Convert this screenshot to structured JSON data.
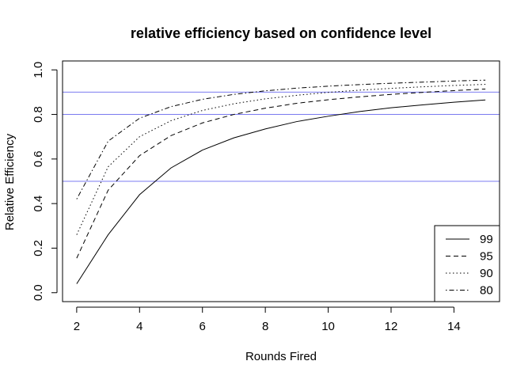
{
  "chart_data": {
    "type": "line",
    "title": "relative efficiency based on confidence level",
    "xlabel": "Rounds Fired",
    "ylabel": "Relative Efficiency",
    "xlim": [
      1.55,
      15.45
    ],
    "ylim": [
      -0.04,
      1.04
    ],
    "xticks": [
      2,
      4,
      6,
      8,
      10,
      12,
      14
    ],
    "yticks": [
      0.0,
      0.2,
      0.4,
      0.6,
      0.8,
      1.0
    ],
    "xtick_labels": [
      "2",
      "4",
      "6",
      "8",
      "10",
      "12",
      "14"
    ],
    "ytick_labels": [
      "0.0",
      "0.2",
      "0.4",
      "0.6",
      "0.8",
      "1.0"
    ],
    "grid": false,
    "legend_position": "bottom-right",
    "x": [
      2,
      3,
      4,
      5,
      6,
      7,
      8,
      9,
      10,
      11,
      12,
      13,
      14,
      15
    ],
    "series": [
      {
        "name": "99",
        "dash": "solid",
        "color": "#000000",
        "values": [
          0.04,
          0.26,
          0.44,
          0.56,
          0.64,
          0.695,
          0.735,
          0.768,
          0.792,
          0.813,
          0.83,
          0.843,
          0.855,
          0.865
        ]
      },
      {
        "name": "95",
        "dash": "dashed",
        "color": "#000000",
        "values": [
          0.155,
          0.46,
          0.615,
          0.705,
          0.762,
          0.8,
          0.828,
          0.85,
          0.866,
          0.879,
          0.89,
          0.899,
          0.907,
          0.914
        ]
      },
      {
        "name": "90",
        "dash": "dotted",
        "color": "#000000",
        "values": [
          0.26,
          0.565,
          0.7,
          0.772,
          0.818,
          0.848,
          0.87,
          0.886,
          0.899,
          0.909,
          0.917,
          0.924,
          0.93,
          0.935
        ]
      },
      {
        "name": "80",
        "dash": "dotdash",
        "color": "#000000",
        "values": [
          0.42,
          0.68,
          0.783,
          0.835,
          0.868,
          0.89,
          0.906,
          0.918,
          0.927,
          0.934,
          0.94,
          0.945,
          0.95,
          0.954
        ]
      }
    ],
    "reference_lines": [
      {
        "y": 0.5,
        "color": "#7b7bf0"
      },
      {
        "y": 0.8,
        "color": "#7b7bf0"
      },
      {
        "y": 0.9,
        "color": "#7b7bf0"
      }
    ]
  }
}
